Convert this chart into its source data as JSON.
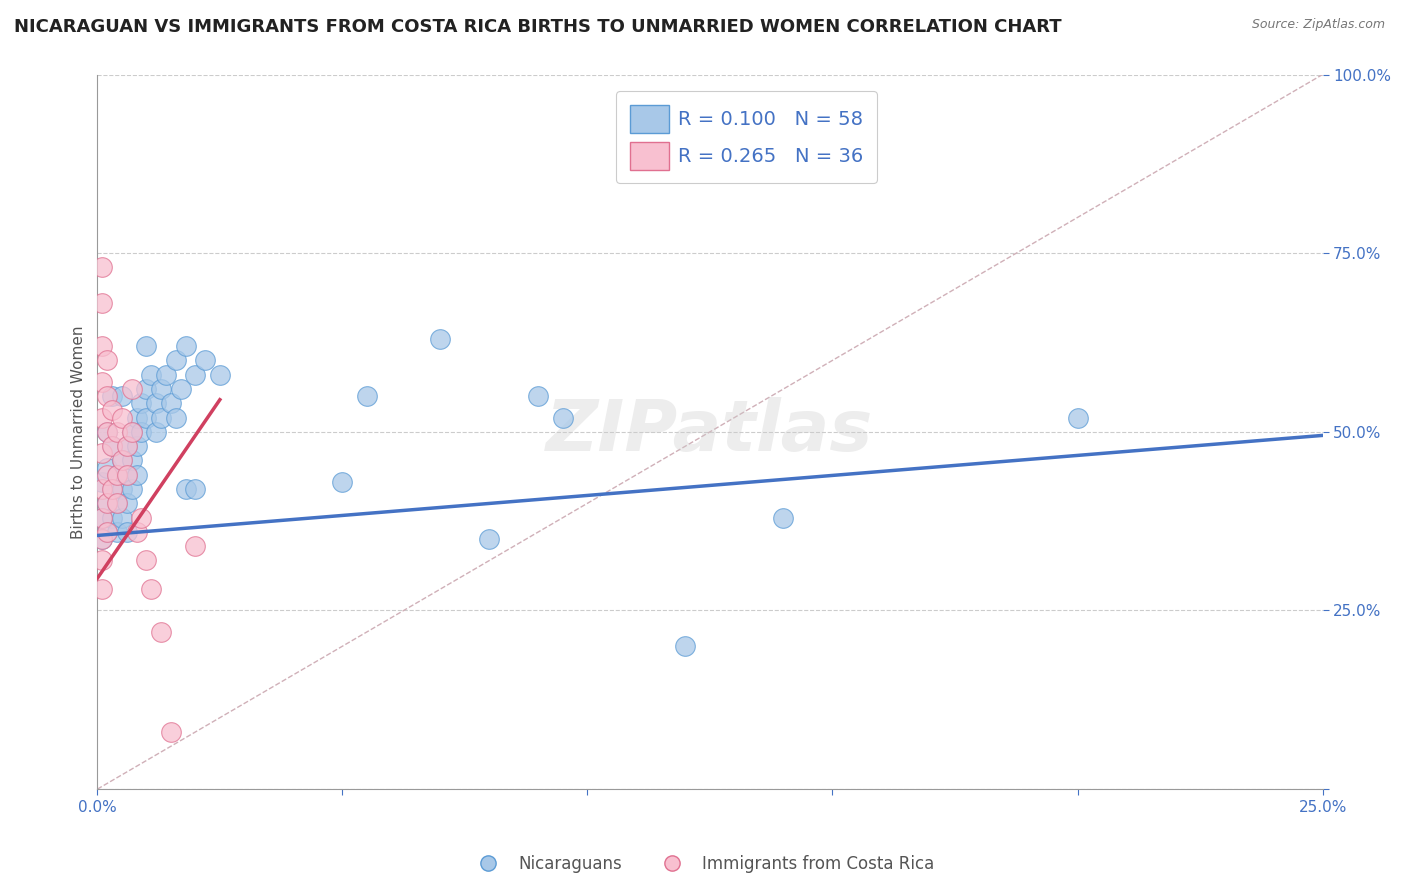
{
  "title": "NICARAGUAN VS IMMIGRANTS FROM COSTA RICA BIRTHS TO UNMARRIED WOMEN CORRELATION CHART",
  "source": "Source: ZipAtlas.com",
  "ylabel": "Births to Unmarried Women",
  "xlim": [
    0.0,
    0.25
  ],
  "ylim": [
    0.0,
    1.0
  ],
  "x_ticks": [
    0.0,
    0.05,
    0.1,
    0.15,
    0.2,
    0.25
  ],
  "x_tick_labels": [
    "0.0%",
    "",
    "",
    "",
    "",
    "25.0%"
  ],
  "y_ticks": [
    0.0,
    0.25,
    0.5,
    0.75,
    1.0
  ],
  "y_tick_labels": [
    "",
    "25.0%",
    "50.0%",
    "75.0%",
    "100.0%"
  ],
  "blue_color": "#a8c8e8",
  "blue_edge_color": "#5b9bd5",
  "pink_color": "#f8c0d0",
  "pink_edge_color": "#e07090",
  "diagonal_color": "#d0b0b8",
  "trendline_blue_color": "#4472c4",
  "trendline_pink_color": "#d04060",
  "watermark_text": "ZIPatlas",
  "background_color": "#ffffff",
  "grid_color": "#cccccc",
  "title_fontsize": 13,
  "axis_fontsize": 11,
  "tick_fontsize": 11,
  "blue_trendline": [
    [
      0.0,
      0.355
    ],
    [
      0.25,
      0.495
    ]
  ],
  "pink_trendline": [
    [
      0.0,
      0.295
    ],
    [
      0.025,
      0.545
    ]
  ],
  "blue_scatter": [
    [
      0.001,
      0.38
    ],
    [
      0.001,
      0.43
    ],
    [
      0.001,
      0.35
    ],
    [
      0.002,
      0.45
    ],
    [
      0.002,
      0.4
    ],
    [
      0.002,
      0.36
    ],
    [
      0.002,
      0.5
    ],
    [
      0.003,
      0.42
    ],
    [
      0.003,
      0.38
    ],
    [
      0.003,
      0.48
    ],
    [
      0.003,
      0.55
    ],
    [
      0.004,
      0.44
    ],
    [
      0.004,
      0.4
    ],
    [
      0.004,
      0.36
    ],
    [
      0.005,
      0.46
    ],
    [
      0.005,
      0.42
    ],
    [
      0.005,
      0.38
    ],
    [
      0.005,
      0.55
    ],
    [
      0.006,
      0.48
    ],
    [
      0.006,
      0.44
    ],
    [
      0.006,
      0.4
    ],
    [
      0.006,
      0.36
    ],
    [
      0.007,
      0.5
    ],
    [
      0.007,
      0.46
    ],
    [
      0.007,
      0.42
    ],
    [
      0.008,
      0.52
    ],
    [
      0.008,
      0.48
    ],
    [
      0.008,
      0.44
    ],
    [
      0.009,
      0.54
    ],
    [
      0.009,
      0.5
    ],
    [
      0.01,
      0.56
    ],
    [
      0.01,
      0.52
    ],
    [
      0.01,
      0.62
    ],
    [
      0.011,
      0.58
    ],
    [
      0.012,
      0.54
    ],
    [
      0.012,
      0.5
    ],
    [
      0.013,
      0.56
    ],
    [
      0.013,
      0.52
    ],
    [
      0.014,
      0.58
    ],
    [
      0.015,
      0.54
    ],
    [
      0.016,
      0.6
    ],
    [
      0.016,
      0.52
    ],
    [
      0.017,
      0.56
    ],
    [
      0.018,
      0.62
    ],
    [
      0.018,
      0.42
    ],
    [
      0.02,
      0.58
    ],
    [
      0.02,
      0.42
    ],
    [
      0.022,
      0.6
    ],
    [
      0.025,
      0.58
    ],
    [
      0.05,
      0.43
    ],
    [
      0.055,
      0.55
    ],
    [
      0.07,
      0.63
    ],
    [
      0.08,
      0.35
    ],
    [
      0.09,
      0.55
    ],
    [
      0.095,
      0.52
    ],
    [
      0.12,
      0.2
    ],
    [
      0.14,
      0.38
    ],
    [
      0.2,
      0.52
    ]
  ],
  "pink_scatter": [
    [
      0.001,
      0.38
    ],
    [
      0.001,
      0.35
    ],
    [
      0.001,
      0.42
    ],
    [
      0.001,
      0.47
    ],
    [
      0.001,
      0.52
    ],
    [
      0.001,
      0.57
    ],
    [
      0.001,
      0.32
    ],
    [
      0.001,
      0.28
    ],
    [
      0.001,
      0.62
    ],
    [
      0.001,
      0.68
    ],
    [
      0.001,
      0.73
    ],
    [
      0.002,
      0.4
    ],
    [
      0.002,
      0.36
    ],
    [
      0.002,
      0.44
    ],
    [
      0.002,
      0.5
    ],
    [
      0.002,
      0.55
    ],
    [
      0.002,
      0.6
    ],
    [
      0.003,
      0.42
    ],
    [
      0.003,
      0.48
    ],
    [
      0.003,
      0.53
    ],
    [
      0.004,
      0.44
    ],
    [
      0.004,
      0.5
    ],
    [
      0.004,
      0.4
    ],
    [
      0.005,
      0.46
    ],
    [
      0.005,
      0.52
    ],
    [
      0.006,
      0.48
    ],
    [
      0.006,
      0.44
    ],
    [
      0.007,
      0.5
    ],
    [
      0.007,
      0.56
    ],
    [
      0.008,
      0.36
    ],
    [
      0.009,
      0.38
    ],
    [
      0.01,
      0.32
    ],
    [
      0.011,
      0.28
    ],
    [
      0.013,
      0.22
    ],
    [
      0.015,
      0.08
    ],
    [
      0.02,
      0.34
    ]
  ]
}
